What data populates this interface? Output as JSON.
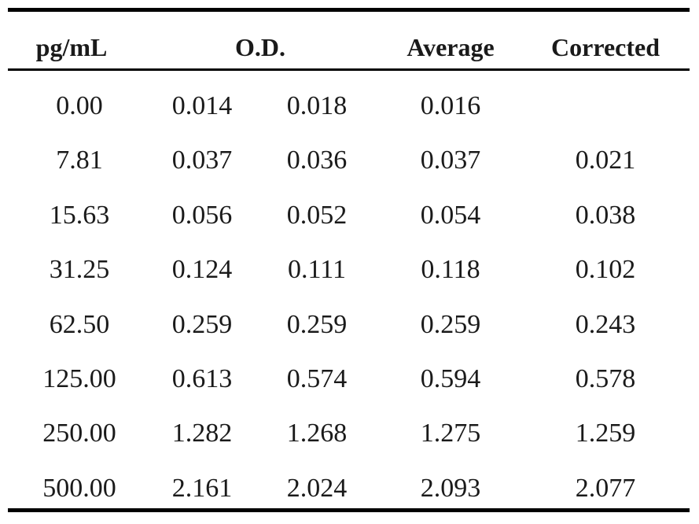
{
  "table": {
    "headers": {
      "concentration": "pg/mL",
      "od": "O.D.",
      "average": "Average",
      "corrected": "Corrected"
    },
    "rows": [
      {
        "concentration": "0.00",
        "od1": "0.014",
        "od2": "0.018",
        "average": "0.016",
        "corrected": ""
      },
      {
        "concentration": "7.81",
        "od1": "0.037",
        "od2": "0.036",
        "average": "0.037",
        "corrected": "0.021"
      },
      {
        "concentration": "15.63",
        "od1": "0.056",
        "od2": "0.052",
        "average": "0.054",
        "corrected": "0.038"
      },
      {
        "concentration": "31.25",
        "od1": "0.124",
        "od2": "0.111",
        "average": "0.118",
        "corrected": "0.102"
      },
      {
        "concentration": "62.50",
        "od1": "0.259",
        "od2": "0.259",
        "average": "0.259",
        "corrected": "0.243"
      },
      {
        "concentration": "125.00",
        "od1": "0.613",
        "od2": "0.574",
        "average": "0.594",
        "corrected": "0.578"
      },
      {
        "concentration": "250.00",
        "od1": "1.282",
        "od2": "1.268",
        "average": "1.275",
        "corrected": "1.259"
      },
      {
        "concentration": "500.00",
        "od1": "2.161",
        "od2": "2.024",
        "average": "2.093",
        "corrected": "2.077"
      }
    ]
  }
}
